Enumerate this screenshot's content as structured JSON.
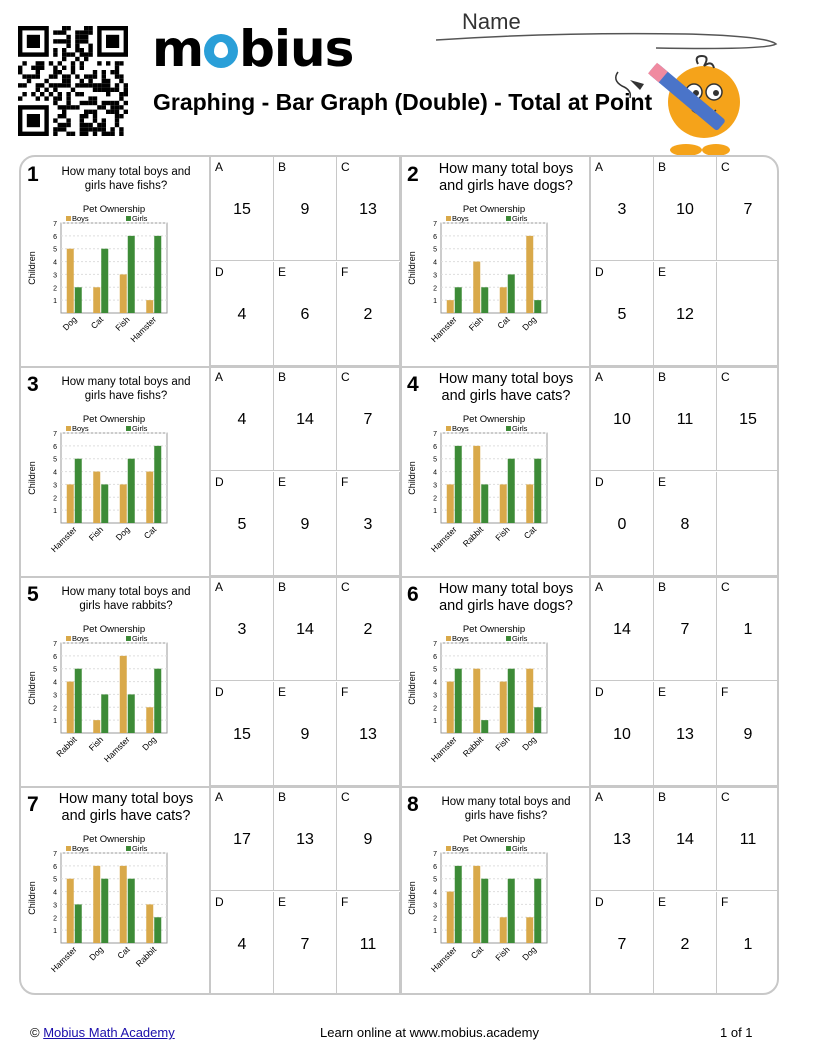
{
  "header": {
    "brand": "mobius",
    "title": "Graphing - Bar Graph (Double) - Total at Point",
    "name_label": "Name"
  },
  "footer": {
    "copyright_symbol": "©",
    "link_text": "Mobius Math Academy",
    "center_text": "Learn online at www.mobius.academy",
    "page": "1 of 1"
  },
  "colors": {
    "boys": "#d9a94a",
    "girls": "#3d8b37",
    "border": "#c8c8c8"
  },
  "questions": [
    {
      "num": "1",
      "text": "How many total boys and girls have fishs?",
      "large": false,
      "options": [
        [
          "A",
          "15"
        ],
        [
          "B",
          "9"
        ],
        [
          "C",
          "13"
        ],
        [
          "D",
          "4"
        ],
        [
          "E",
          "6"
        ],
        [
          "F",
          "2"
        ]
      ],
      "chart_data": {
        "type": "bar",
        "title": "Pet Ownership",
        "ylabel": "Children",
        "ylim": [
          0,
          7
        ],
        "legend": [
          "Boys",
          "Girls"
        ],
        "categories": [
          "Dog",
          "Cat",
          "Fish",
          "Hamster"
        ],
        "series": [
          {
            "name": "Boys",
            "values": [
              5,
              2,
              3,
              1
            ]
          },
          {
            "name": "Girls",
            "values": [
              2,
              5,
              6,
              6
            ]
          }
        ]
      }
    },
    {
      "num": "2",
      "text": "How many total boys and girls have dogs?",
      "large": true,
      "options": [
        [
          "A",
          "3"
        ],
        [
          "B",
          "10"
        ],
        [
          "C",
          "7"
        ],
        [
          "D",
          "5"
        ],
        [
          "E",
          "12"
        ]
      ],
      "chart_data": {
        "type": "bar",
        "title": "Pet Ownership",
        "ylabel": "Children",
        "ylim": [
          0,
          7
        ],
        "legend": [
          "Boys",
          "Girls"
        ],
        "categories": [
          "Hamster",
          "Fish",
          "Cat",
          "Dog"
        ],
        "series": [
          {
            "name": "Boys",
            "values": [
              1,
              4,
              2,
              6
            ]
          },
          {
            "name": "Girls",
            "values": [
              2,
              2,
              3,
              1
            ]
          }
        ]
      }
    },
    {
      "num": "3",
      "text": "How many total boys and girls have fishs?",
      "large": false,
      "options": [
        [
          "A",
          "4"
        ],
        [
          "B",
          "14"
        ],
        [
          "C",
          "7"
        ],
        [
          "D",
          "5"
        ],
        [
          "E",
          "9"
        ],
        [
          "F",
          "3"
        ]
      ],
      "chart_data": {
        "type": "bar",
        "title": "Pet Ownership",
        "ylabel": "Children",
        "ylim": [
          0,
          7
        ],
        "legend": [
          "Boys",
          "Girls"
        ],
        "categories": [
          "Hamster",
          "Fish",
          "Dog",
          "Cat"
        ],
        "series": [
          {
            "name": "Boys",
            "values": [
              3,
              4,
              3,
              4
            ]
          },
          {
            "name": "Girls",
            "values": [
              5,
              3,
              5,
              6
            ]
          }
        ]
      }
    },
    {
      "num": "4",
      "text": "How many total boys and girls have cats?",
      "large": true,
      "options": [
        [
          "A",
          "10"
        ],
        [
          "B",
          "11"
        ],
        [
          "C",
          "15"
        ],
        [
          "D",
          "0"
        ],
        [
          "E",
          "8"
        ]
      ],
      "chart_data": {
        "type": "bar",
        "title": "Pet Ownership",
        "ylabel": "Children",
        "ylim": [
          0,
          7
        ],
        "legend": [
          "Boys",
          "Girls"
        ],
        "categories": [
          "Hamster",
          "Rabbit",
          "Fish",
          "Cat"
        ],
        "series": [
          {
            "name": "Boys",
            "values": [
              3,
              6,
              3,
              3
            ]
          },
          {
            "name": "Girls",
            "values": [
              6,
              3,
              5,
              5
            ]
          }
        ]
      }
    },
    {
      "num": "5",
      "text": "How many total boys and girls have rabbits?",
      "large": false,
      "options": [
        [
          "A",
          "3"
        ],
        [
          "B",
          "14"
        ],
        [
          "C",
          "2"
        ],
        [
          "D",
          "15"
        ],
        [
          "E",
          "9"
        ],
        [
          "F",
          "13"
        ]
      ],
      "chart_data": {
        "type": "bar",
        "title": "Pet Ownership",
        "ylabel": "Children",
        "ylim": [
          0,
          7
        ],
        "legend": [
          "Boys",
          "Girls"
        ],
        "categories": [
          "Rabbit",
          "Fish",
          "Hamster",
          "Dog"
        ],
        "series": [
          {
            "name": "Boys",
            "values": [
              4,
              1,
              6,
              2
            ]
          },
          {
            "name": "Girls",
            "values": [
              5,
              3,
              3,
              5
            ]
          }
        ]
      }
    },
    {
      "num": "6",
      "text": "How many total boys and girls have dogs?",
      "large": true,
      "options": [
        [
          "A",
          "14"
        ],
        [
          "B",
          "7"
        ],
        [
          "C",
          "1"
        ],
        [
          "D",
          "10"
        ],
        [
          "E",
          "13"
        ],
        [
          "F",
          "9"
        ]
      ],
      "chart_data": {
        "type": "bar",
        "title": "Pet Ownership",
        "ylabel": "Children",
        "ylim": [
          0,
          7
        ],
        "legend": [
          "Boys",
          "Girls"
        ],
        "categories": [
          "Hamster",
          "Rabbit",
          "Fish",
          "Dog"
        ],
        "series": [
          {
            "name": "Boys",
            "values": [
              4,
              5,
              4,
              5
            ]
          },
          {
            "name": "Girls",
            "values": [
              5,
              1,
              5,
              2
            ]
          }
        ]
      }
    },
    {
      "num": "7",
      "text": "How many total boys and girls have cats?",
      "large": true,
      "options": [
        [
          "A",
          "17"
        ],
        [
          "B",
          "13"
        ],
        [
          "C",
          "9"
        ],
        [
          "D",
          "4"
        ],
        [
          "E",
          "7"
        ],
        [
          "F",
          "11"
        ]
      ],
      "chart_data": {
        "type": "bar",
        "title": "Pet Ownership",
        "ylabel": "Children",
        "ylim": [
          0,
          7
        ],
        "legend": [
          "Boys",
          "Girls"
        ],
        "categories": [
          "Hamster",
          "Dog",
          "Cat",
          "Rabbit"
        ],
        "series": [
          {
            "name": "Boys",
            "values": [
              5,
              6,
              6,
              3
            ]
          },
          {
            "name": "Girls",
            "values": [
              3,
              5,
              5,
              2
            ]
          }
        ]
      }
    },
    {
      "num": "8",
      "text": "How many total boys and girls have fishs?",
      "large": false,
      "options": [
        [
          "A",
          "13"
        ],
        [
          "B",
          "14"
        ],
        [
          "C",
          "11"
        ],
        [
          "D",
          "7"
        ],
        [
          "E",
          "2"
        ],
        [
          "F",
          "1"
        ]
      ],
      "chart_data": {
        "type": "bar",
        "title": "Pet Ownership",
        "ylabel": "Children",
        "ylim": [
          0,
          7
        ],
        "legend": [
          "Boys",
          "Girls"
        ],
        "categories": [
          "Hamster",
          "Cat",
          "Fish",
          "Dog"
        ],
        "series": [
          {
            "name": "Boys",
            "values": [
              4,
              6,
              2,
              2
            ]
          },
          {
            "name": "Girls",
            "values": [
              6,
              5,
              5,
              5
            ]
          }
        ]
      }
    }
  ]
}
